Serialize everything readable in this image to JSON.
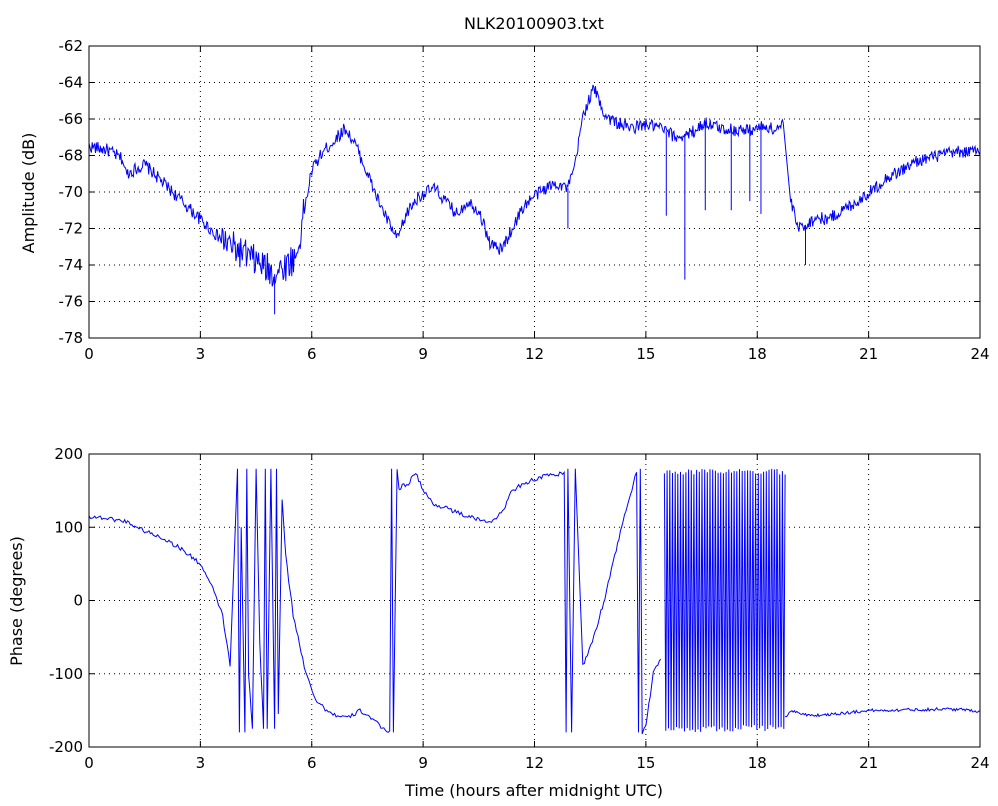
{
  "chart_data": [
    {
      "type": "line",
      "title": "NLK20100903.txt",
      "xlabel": "",
      "ylabel": "Amplitude (dB)",
      "xlim": [
        0,
        24
      ],
      "ylim": [
        -78,
        -62
      ],
      "xticks": [
        0,
        3,
        6,
        9,
        12,
        15,
        18,
        21,
        24
      ],
      "yticks": [
        -78,
        -76,
        -74,
        -72,
        -70,
        -68,
        -66,
        -64,
        -62
      ],
      "grid": true,
      "color": "#0000ff",
      "series": [
        {
          "x": [
            0,
            0.5,
            0.9,
            1.0,
            1.5,
            2.0,
            2.5,
            3.0,
            3.5,
            4.0,
            4.5,
            5.0,
            5.3,
            5.6,
            5.8,
            6.0,
            6.3,
            6.6,
            6.9,
            7.2,
            7.5,
            7.8,
            8.1,
            8.3,
            8.6,
            8.9,
            9.3,
            9.6,
            9.9,
            10.2,
            10.5,
            10.8,
            11.1,
            11.4,
            11.7,
            12.0,
            12.3,
            12.6,
            12.9,
            13.1,
            13.3,
            13.6,
            13.9,
            14.2,
            14.6,
            15.0,
            15.4,
            15.8,
            16.2,
            16.6,
            17.0,
            17.4,
            17.8,
            18.2,
            18.5,
            18.7,
            18.9,
            19.1,
            19.3,
            19.6,
            19.9,
            20.3,
            20.7,
            21.1,
            21.5,
            21.9,
            22.3,
            22.7,
            23.1,
            23.5,
            23.8,
            24.0
          ],
          "y": [
            -67.5,
            -67.7,
            -68.2,
            -69.0,
            -68.5,
            -69.5,
            -70.5,
            -71.5,
            -72.5,
            -73.2,
            -73.8,
            -74.5,
            -74.0,
            -73.5,
            -71.0,
            -68.8,
            -67.8,
            -67.2,
            -66.5,
            -67.5,
            -69.0,
            -70.5,
            -71.8,
            -72.6,
            -71.0,
            -70.2,
            -69.8,
            -70.5,
            -71.2,
            -70.5,
            -71.0,
            -72.8,
            -73.2,
            -72.0,
            -70.8,
            -70.2,
            -69.8,
            -69.5,
            -69.8,
            -68.5,
            -65.8,
            -64.3,
            -65.8,
            -66.2,
            -66.5,
            -66.3,
            -66.5,
            -67.0,
            -66.8,
            -66.2,
            -66.5,
            -66.6,
            -66.6,
            -66.4,
            -66.6,
            -66.2,
            -70.5,
            -72.0,
            -71.8,
            -71.4,
            -71.5,
            -71.0,
            -70.5,
            -69.9,
            -69.2,
            -68.8,
            -68.3,
            -68.1,
            -67.9,
            -67.8,
            -67.8,
            -67.8
          ]
        }
      ],
      "spikes": [
        {
          "x": 15.55,
          "y": -71.3
        },
        {
          "x": 16.05,
          "y": -74.8
        },
        {
          "x": 16.6,
          "y": -71.0
        },
        {
          "x": 17.3,
          "y": -71.0
        },
        {
          "x": 17.8,
          "y": -70.5
        },
        {
          "x": 18.1,
          "y": -71.2
        },
        {
          "x": 19.3,
          "y": -74.0
        },
        {
          "x": 12.9,
          "y": -72.0
        },
        {
          "x": 5.0,
          "y": -76.7
        }
      ]
    },
    {
      "type": "line",
      "title": "",
      "xlabel": "Time (hours after midnight UTC)",
      "ylabel": "Phase (degrees)",
      "xlim": [
        0,
        24
      ],
      "ylim": [
        -200,
        200
      ],
      "xticks": [
        0,
        3,
        6,
        9,
        12,
        15,
        18,
        21,
        24
      ],
      "yticks": [
        -200,
        -100,
        0,
        100,
        200
      ],
      "grid": true,
      "color": "#0000ff",
      "series": [
        {
          "x": [
            0,
            0.5,
            1.0,
            1.5,
            2.0,
            2.5,
            3.0,
            3.3,
            3.6,
            3.8,
            4.0,
            4.05,
            4.1,
            4.2,
            4.25,
            4.3,
            4.4,
            4.5,
            4.6,
            4.7,
            4.75,
            4.8,
            4.9,
            5.0,
            5.05,
            5.1,
            5.2,
            5.25,
            5.3,
            5.5,
            5.8,
            6.1,
            6.4,
            6.7,
            7.0,
            7.3,
            7.6,
            7.9,
            8.1,
            8.15,
            8.2,
            8.3,
            8.35,
            8.4,
            8.6,
            8.8,
            9.0,
            9.3,
            9.6,
            9.9,
            10.2,
            10.5,
            10.8,
            11.1,
            11.4,
            11.7,
            12.0,
            12.3,
            12.6,
            12.8,
            12.85,
            12.9,
            13.0,
            13.1,
            13.3,
            13.6,
            13.9,
            14.2,
            14.5,
            14.75,
            14.8,
            14.85,
            14.9,
            15.0,
            15.2,
            15.4
          ],
          "y": [
            115,
            112,
            108,
            95,
            85,
            70,
            50,
            20,
            -20,
            -90,
            180,
            -180,
            100,
            -180,
            180,
            -100,
            -175,
            180,
            -60,
            -175,
            180,
            -175,
            180,
            -175,
            180,
            -155,
            140,
            100,
            60,
            -20,
            -90,
            -135,
            -150,
            -158,
            -160,
            -150,
            -160,
            -175,
            -178,
            180,
            -180,
            180,
            150,
            155,
            160,
            175,
            150,
            130,
            128,
            120,
            115,
            110,
            108,
            118,
            150,
            160,
            165,
            170,
            172,
            175,
            -180,
            180,
            -180,
            180,
            -90,
            -50,
            5,
            70,
            130,
            175,
            -180,
            180,
            -180,
            -170,
            -100,
            -80
          ]
        }
      ],
      "oscillation": {
        "x_start": 15.5,
        "x_end": 18.75,
        "y_min": -180,
        "y_max": 180,
        "cycles": 45
      },
      "tail": {
        "x": [
          18.75,
          18.9,
          19.2,
          19.6,
          20.0,
          20.5,
          21.0,
          21.5,
          22.0,
          22.5,
          23.0,
          23.5,
          24.0
        ],
        "y": [
          -160,
          -150,
          -155,
          -157,
          -155,
          -153,
          -150,
          -150,
          -149,
          -149,
          -148,
          -149,
          -151
        ]
      }
    }
  ]
}
